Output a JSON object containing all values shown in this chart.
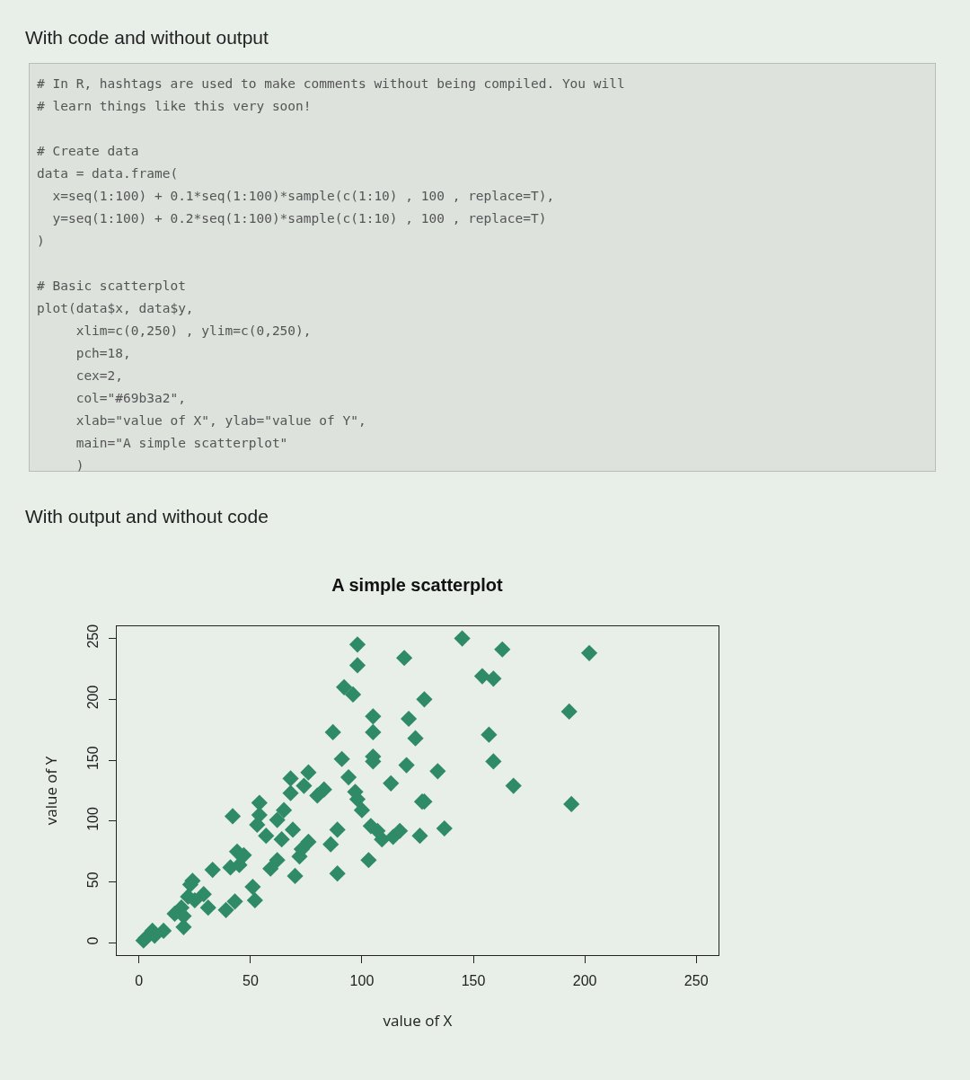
{
  "chart_data": {
    "type": "scatter",
    "title": "A simple scatterplot",
    "xlabel": "value of X",
    "ylabel": "value of Y",
    "annotations": [
      "With code and without output",
      "# In R, hashtags are used to make comments without being compiled. You will",
      "# learn things like this very soon!",
      "# Create data",
      "data = data.frame(",
      "  x=seq(1:100) + 0.1*seq(1:100)*sample(c(1:10) , 100 , replace=T),",
      "  y=seq(1:100) + 0.2*seq(1:100)*sample(c(1:10) , 100 , replace=T)",
      ")",
      "# Basic scatterplot",
      "plot(data$x, data$y,",
      "     xlim=c(0,250) , ylim=c(0,250),",
      "     pch=18,",
      "     cex=2,",
      "     col=\"#69b3a2\",",
      "     xlab=\"value of X\", ylab=\"value of Y\",",
      "     main=\"A simple scatterplot\"",
      "     )",
      "With output and without code"
    ],
    "x": [
      98,
      98,
      119,
      92,
      96,
      105,
      121,
      87,
      105,
      124,
      91,
      105,
      105,
      120,
      68,
      76,
      74,
      68,
      80,
      83,
      94,
      113,
      97,
      98,
      100,
      127,
      42,
      54,
      54,
      53,
      62,
      65,
      57,
      64,
      69,
      76,
      89,
      104,
      107,
      109,
      114,
      117,
      126,
      86,
      73,
      72,
      62,
      59,
      70,
      89,
      103,
      44,
      47,
      41,
      45,
      33,
      24,
      23,
      29,
      31,
      22,
      25,
      19,
      16,
      20,
      20,
      39,
      43,
      51,
      52,
      11,
      6,
      3,
      2,
      7,
      145,
      163,
      202,
      154,
      159,
      128,
      193,
      157,
      134,
      159,
      168,
      128,
      194,
      137
    ],
    "values": [
      245,
      228,
      234,
      210,
      204,
      186,
      184,
      173,
      173,
      168,
      151,
      153,
      149,
      146,
      135,
      140,
      129,
      123,
      121,
      126,
      136,
      131,
      124,
      118,
      109,
      116,
      104,
      115,
      105,
      97,
      101,
      109,
      88,
      85,
      93,
      83,
      93,
      96,
      92,
      85,
      87,
      92,
      88,
      81,
      77,
      71,
      68,
      61,
      55,
      57,
      68,
      75,
      72,
      62,
      64,
      60,
      51,
      48,
      40,
      29,
      38,
      35,
      29,
      24,
      22,
      13,
      27,
      34,
      46,
      35,
      10,
      10,
      4,
      2,
      6,
      250,
      241,
      238,
      219,
      217,
      200,
      190,
      171,
      141,
      149,
      129,
      116,
      114,
      94
    ],
    "color": "#2f8a68",
    "marker": "diamond",
    "xlim": [
      -10,
      260
    ],
    "ylim": [
      -10,
      260
    ],
    "xticks": [
      0,
      50,
      100,
      150,
      200,
      250
    ],
    "yticks": [
      0,
      50,
      100,
      150,
      200,
      250
    ],
    "grid": false
  }
}
